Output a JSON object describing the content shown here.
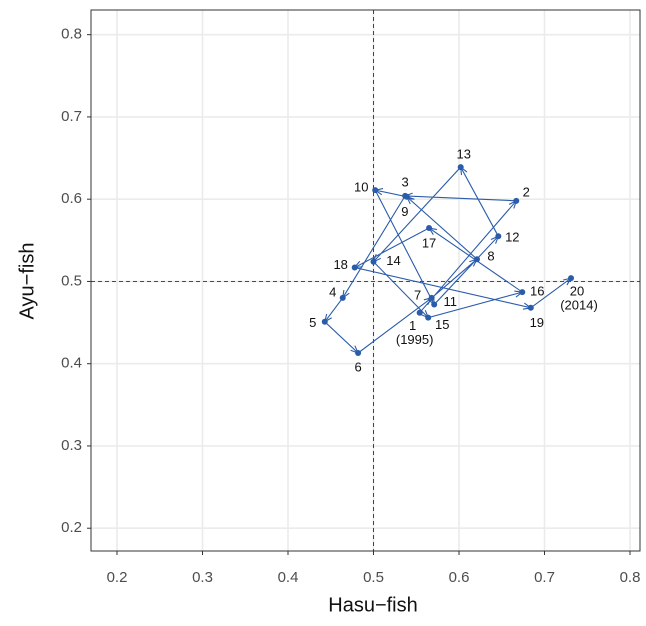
{
  "chart_data": {
    "type": "connected-scatter",
    "x_label": "Hasu−fish",
    "y_label": "Ayu−fish",
    "labels": [
      "1",
      "2",
      "3",
      "4",
      "5",
      "6",
      "7",
      "8",
      "9",
      "10",
      "11",
      "12",
      "13",
      "14",
      "15",
      "16",
      "17",
      "18",
      "19",
      "20"
    ],
    "x": [
      0.554,
      0.667,
      0.537,
      0.464,
      0.443,
      0.482,
      0.568,
      0.621,
      0.539,
      0.502,
      0.571,
      0.646,
      0.602,
      0.5,
      0.564,
      0.674,
      0.565,
      0.478,
      0.684,
      0.731
    ],
    "y": [
      0.462,
      0.598,
      0.604,
      0.48,
      0.451,
      0.413,
      0.48,
      0.527,
      0.603,
      0.611,
      0.472,
      0.555,
      0.639,
      0.524,
      0.456,
      0.487,
      0.565,
      0.517,
      0.468,
      0.504
    ],
    "annotations": [
      {
        "text": "(1995)",
        "point": 0
      },
      {
        "text": "(2014)",
        "point": 19
      }
    ],
    "color": "#2a5caa",
    "reference_lines": {
      "x": 0.5,
      "y": 0.5
    },
    "xlim": [
      0.1696,
      0.8117
    ],
    "ylim": [
      0.1723,
      0.83
    ],
    "xticks": [
      0.2,
      0.3,
      0.4,
      0.5,
      0.6,
      0.7,
      0.8
    ],
    "yticks": [
      0.2,
      0.3,
      0.4,
      0.5,
      0.6,
      0.7,
      0.8
    ],
    "grid": true
  }
}
